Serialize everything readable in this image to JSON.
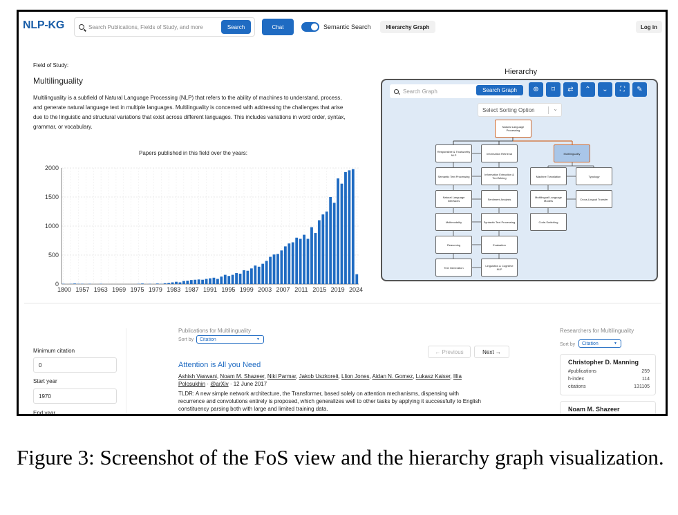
{
  "nav": {
    "logo": "NLP-KG",
    "search_placeholder": "Search Publications, Fields of Study, and more",
    "search_button": "Search",
    "chat_button": "Chat",
    "semantic_search_label": "Semantic Search",
    "semantic_search_on": true,
    "hierarchy_graph": "Hierarchy Graph",
    "login": "Log in"
  },
  "fos": {
    "label": "Field of Study:",
    "title": "Multilinguality",
    "description": "Multilinguality is a subfield of Natural Language Processing (NLP) that refers to the ability of machines to understand, process, and generate natural language text in multiple languages. Multilinguality is concerned with addressing the challenges that arise due to the linguistic and structural variations that exist across different languages. This includes variations in word order, syntax, grammar, or vocabulary."
  },
  "chart_data": {
    "type": "bar",
    "title": "Papers published in this field over the years:",
    "xlabel": "",
    "ylabel": "",
    "ylim": [
      0,
      2000
    ],
    "yticks": [
      0,
      500,
      1000,
      1500,
      2000
    ],
    "xtick_labels": [
      "1800",
      "1957",
      "1963",
      "1969",
      "1975",
      "1979",
      "1983",
      "1987",
      "1991",
      "1995",
      "1999",
      "2003",
      "2007",
      "2011",
      "2015",
      "2019",
      "2024"
    ],
    "grid": true,
    "values": [
      5,
      0,
      5,
      10,
      5,
      5,
      0,
      5,
      0,
      0,
      5,
      0,
      0,
      0,
      0,
      0,
      0,
      0,
      0,
      0,
      5,
      10,
      0,
      5,
      0,
      10,
      5,
      15,
      20,
      30,
      40,
      30,
      55,
      60,
      70,
      75,
      80,
      75,
      90,
      100,
      110,
      90,
      130,
      160,
      140,
      160,
      190,
      180,
      240,
      230,
      270,
      320,
      300,
      350,
      400,
      470,
      510,
      520,
      580,
      650,
      700,
      720,
      800,
      780,
      850,
      780,
      980,
      880,
      1100,
      1200,
      1250,
      1500,
      1400,
      1820,
      1730,
      1930,
      1960,
      1980,
      170
    ]
  },
  "hierarchy": {
    "title": "Hierarchy",
    "search_placeholder": "Search Graph",
    "search_button": "Search Graph",
    "icons": [
      "zoom-in-icon",
      "focus-icon",
      "swap-icon",
      "collapse-up-icon",
      "expand-down-icon",
      "fullscreen-icon",
      "edit-icon"
    ],
    "sort_placeholder": "Select Sorting Option",
    "root": "Natural Language Processing",
    "column1": [
      "Responsible & Trustworthy NLP",
      "Semantic Text Processing",
      "Natural Language Interfaces",
      "Multimodality",
      "Reasoning",
      "Text Generation"
    ],
    "column2": [
      "Information Retrieval",
      "Information Extraction & Text Mining",
      "Sentiment Analysis",
      "Syntactic Text Processing",
      "Evaluation",
      "Linguistics & Cognitive NLP"
    ],
    "selected": "Multilinguality",
    "children": [
      "Machine Translation",
      "Typology",
      "Multilingual Language Models",
      "Cross-Lingual Transfer",
      "Code-Switching"
    ]
  },
  "filters": {
    "min_citation_label": "Minimum citation",
    "min_citation_value": "0",
    "start_year_label": "Start year",
    "start_year_value": "1970",
    "end_year_label": "End year"
  },
  "publications": {
    "header": "Publications for Multilinguality",
    "sort_label": "Sort by",
    "sort_value": "Citation",
    "prev": "← Previous",
    "next": "Next →",
    "paper": {
      "title": "Attention is All you Need",
      "authors": [
        "Ashish Vaswani",
        "Noam M. Shazeer",
        "Niki Parmar",
        "Jakob Uszkoreit",
        "Llion Jones",
        "Aidan N. Gomez",
        "Lukasz Kaiser",
        "Illia Polosukhin"
      ],
      "venue": "@arXiv",
      "date": "12 June 2017",
      "tldr": "TLDR: A new simple network architecture, the Transformer, based solely on attention mechanisms, dispensing with recurrence and convolutions entirely is proposed, which generalizes well to other tasks by applying it successfully to English constituency parsing both with large and limited training data."
    }
  },
  "researchers": {
    "header": "Researchers for Multilinguality",
    "sort_label": "Sort by",
    "sort_value": "Citation",
    "cards": [
      {
        "name": "Christopher D. Manning",
        "publications_label": "#publications",
        "publications": "259",
        "hindex_label": "h-index",
        "hindex": "114",
        "citations_label": "citations",
        "citations": "131105"
      },
      {
        "name": "Noam M. Shazeer"
      }
    ]
  },
  "caption": "Figure 3: Screenshot of the FoS view and the hierarchy graph visualization."
}
